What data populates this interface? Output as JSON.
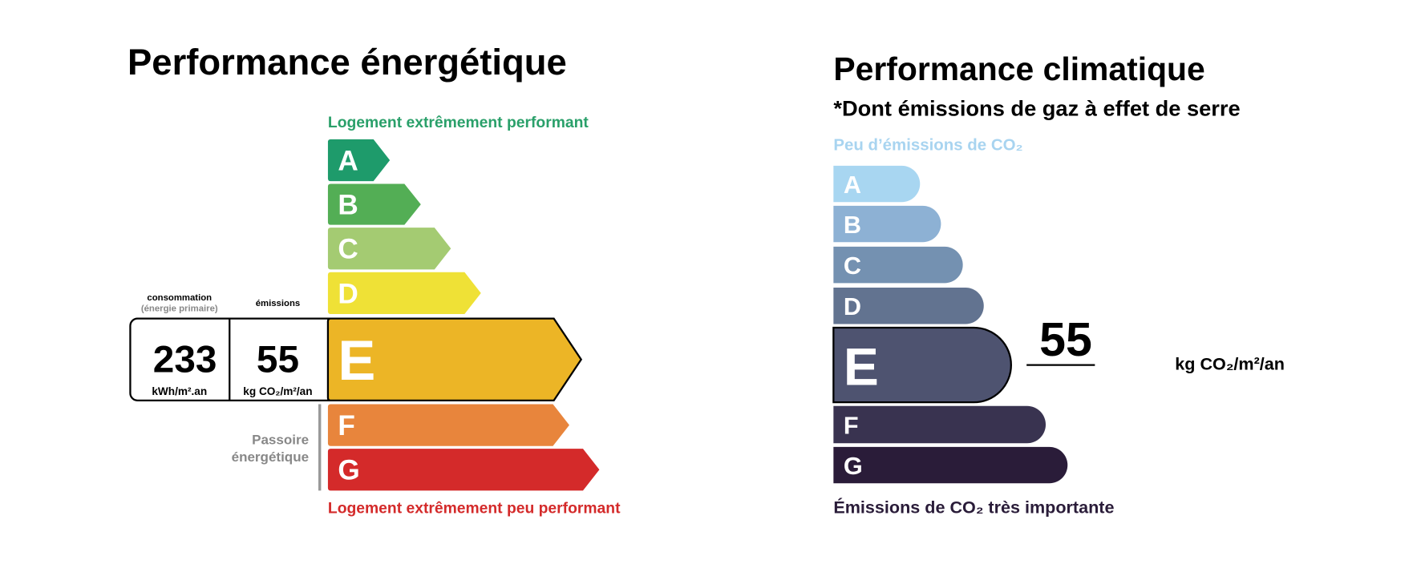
{
  "energy": {
    "title": "Performance énergétique",
    "top_label": "Logement extrêmement performant",
    "bottom_label": "Logement extrêmement peu performant",
    "consumption_header": "consommation",
    "consumption_subheader": "(énergie primaire)",
    "emissions_header": "émissions",
    "consumption_value": 233,
    "consumption_unit": "kWh/m².an",
    "emissions_value": 55,
    "emissions_unit": "kg CO₂/m²/an",
    "passoire_lines": [
      "Passoire",
      "énergétique"
    ],
    "active_class": 4,
    "classes": [
      {
        "letter": "A",
        "color": "#1e9b6b"
      },
      {
        "letter": "B",
        "color": "#53ae55"
      },
      {
        "letter": "C",
        "color": "#a4cb72"
      },
      {
        "letter": "D",
        "color": "#efe136"
      },
      {
        "letter": "E",
        "color": "#ecb526"
      },
      {
        "letter": "F",
        "color": "#e8853c"
      },
      {
        "letter": "G",
        "color": "#d42a2a"
      }
    ]
  },
  "climate": {
    "title": "Performance climatique",
    "subtitle": "*Dont émissions de gaz à effet de serre",
    "top_label": "Peu d’émissions de CO₂",
    "bottom_label": "Émissions de CO₂ très importante",
    "value": 55,
    "unit": "kg CO₂/m²/an",
    "active_class": 4,
    "classes": [
      {
        "letter": "A",
        "color": "#a8d6f1"
      },
      {
        "letter": "B",
        "color": "#8db1d4"
      },
      {
        "letter": "C",
        "color": "#7491b1"
      },
      {
        "letter": "D",
        "color": "#627390"
      },
      {
        "letter": "E",
        "color": "#4e5370"
      },
      {
        "letter": "F",
        "color": "#393350"
      },
      {
        "letter": "G",
        "color": "#2a1c39"
      }
    ]
  }
}
